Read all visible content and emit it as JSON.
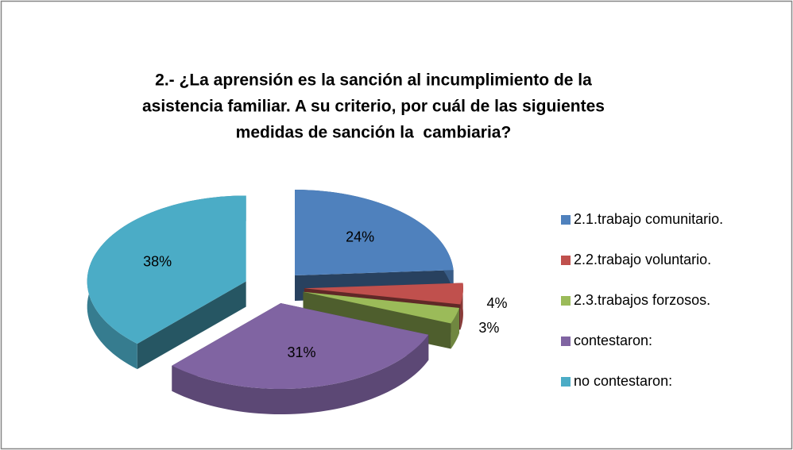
{
  "chart_data": {
    "type": "pie",
    "title": [
      "2.- ¿La aprensión es la sanción al incumplimiento de la",
      "asistencia familiar. A su criterio, por cuál de las siguientes",
      "medidas de sanción la  cambiaria?"
    ],
    "categories": [
      "2.1.trabajo comunitario.",
      "2.2.trabajo voluntario.",
      "2.3.trabajos forzosos.",
      "contestaron:",
      "no contestaron:"
    ],
    "values": [
      24,
      4,
      3,
      31,
      38
    ],
    "value_labels": [
      "24%",
      "4%",
      "3%",
      "31%",
      "38%"
    ],
    "colors": [
      "#4f81bd",
      "#c0504d",
      "#9bbb59",
      "#8064a2",
      "#4bacc6"
    ],
    "legend": "right"
  }
}
